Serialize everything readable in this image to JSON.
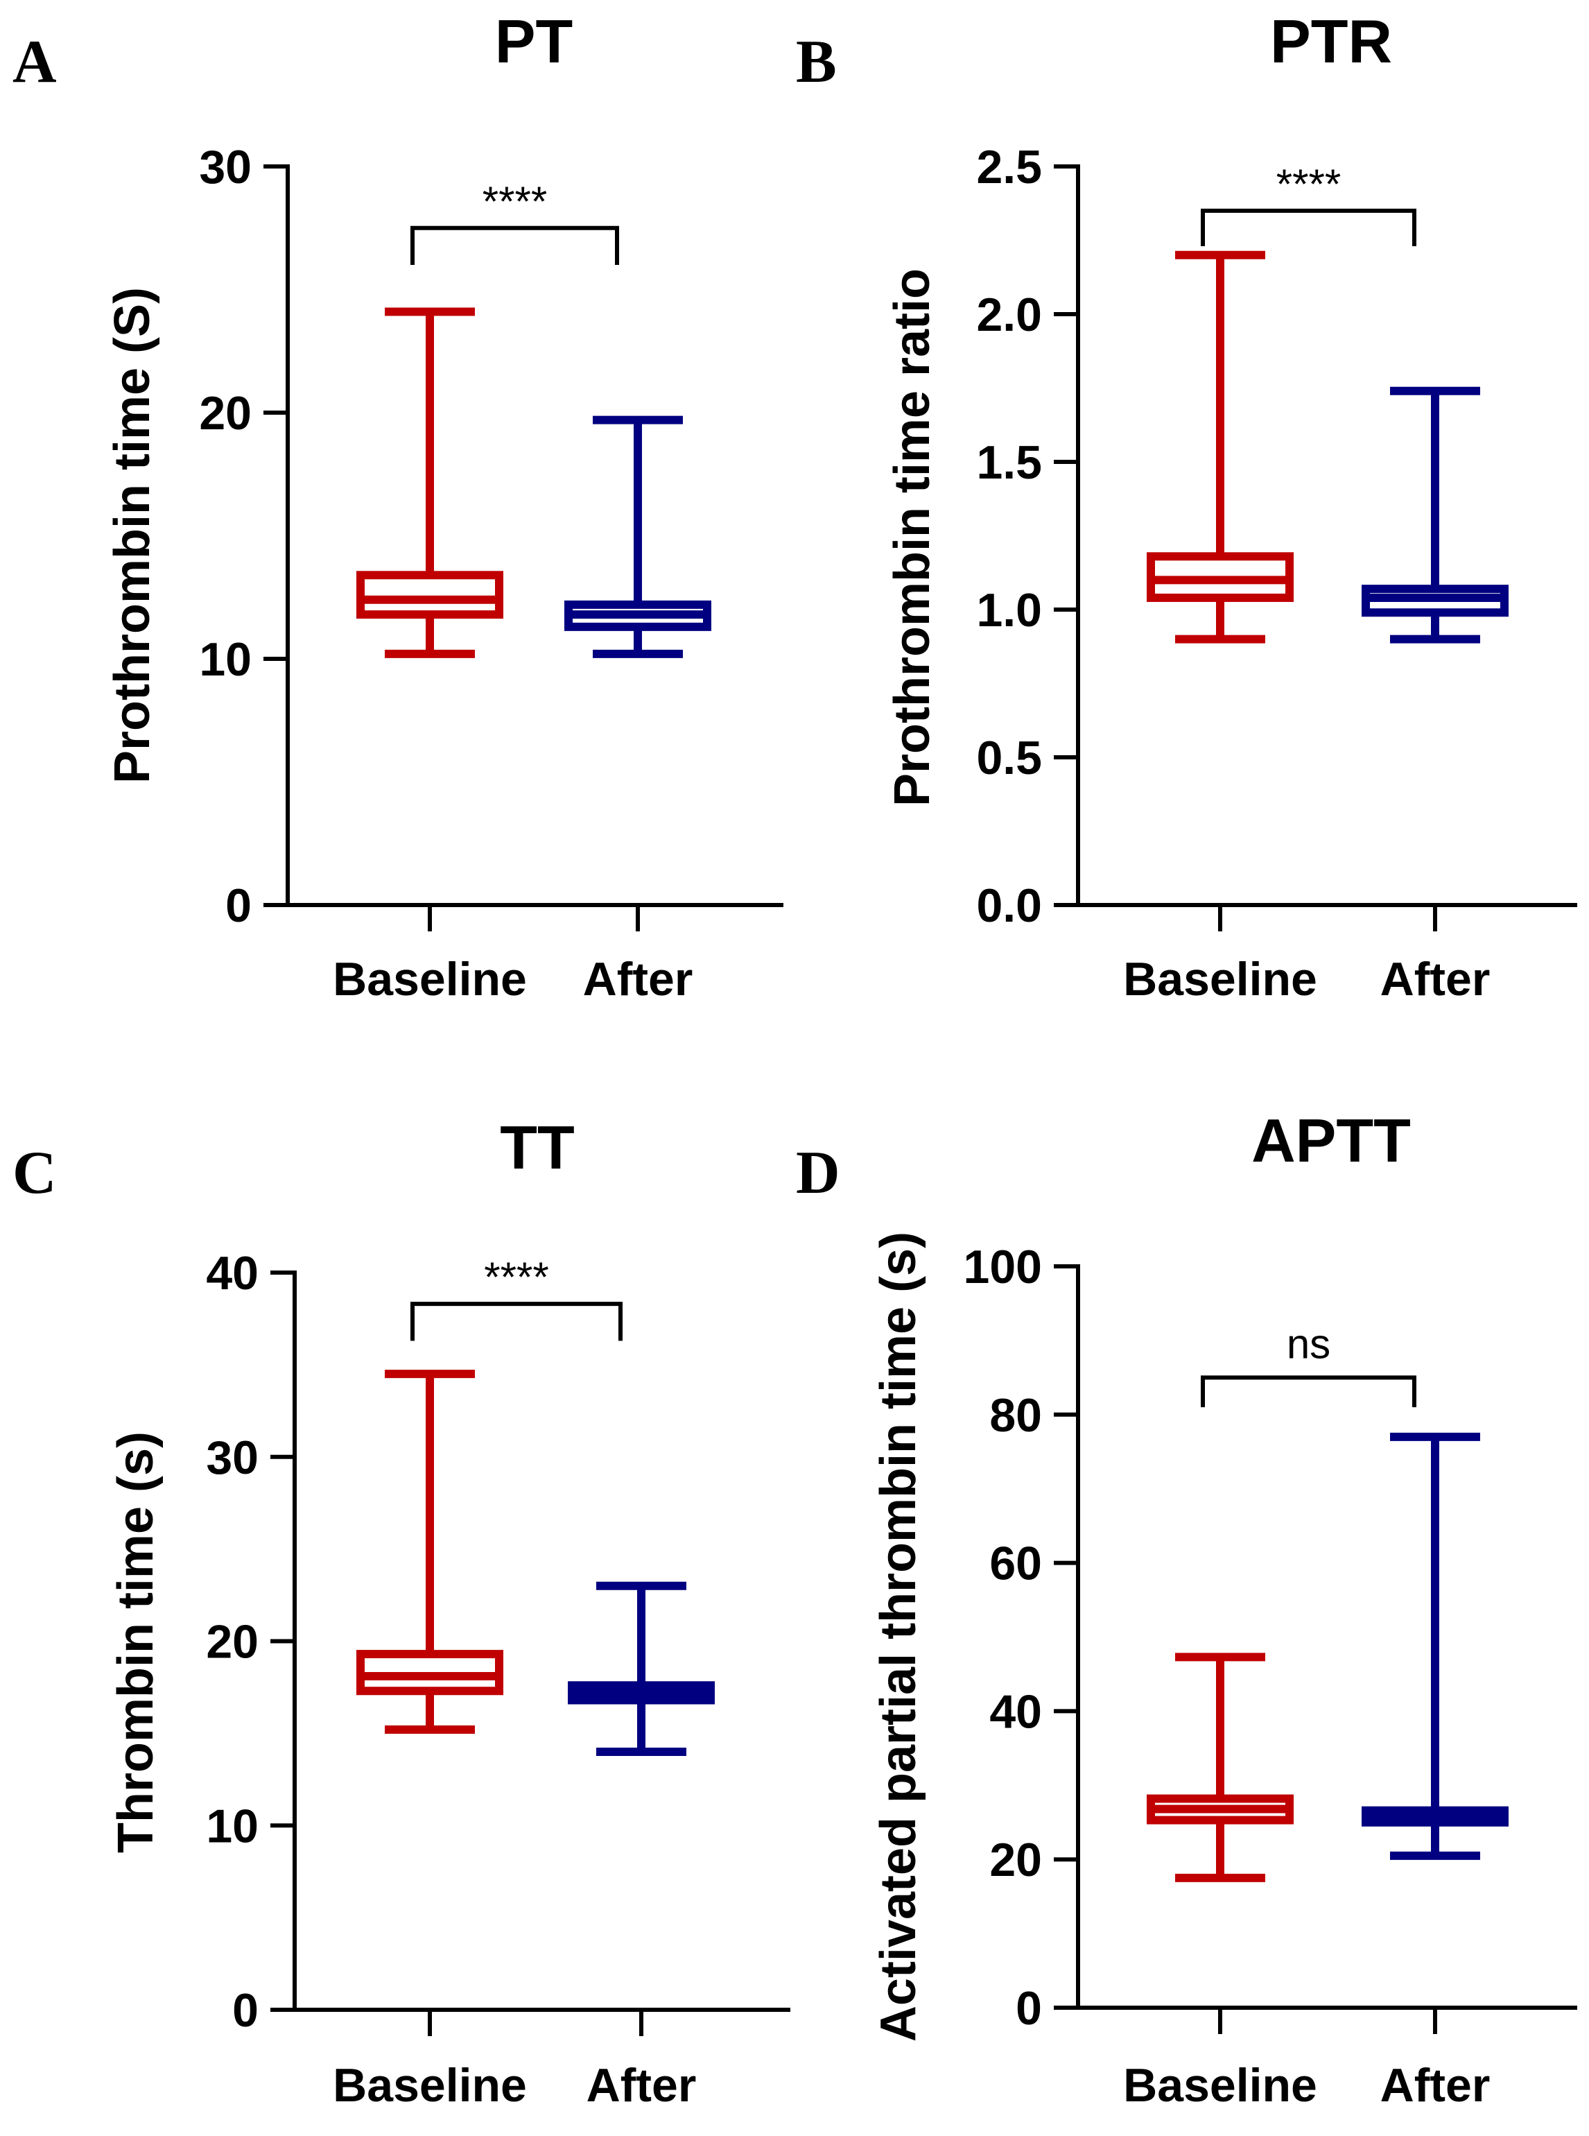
{
  "figure": {
    "group_colors": {
      "Baseline": "#c00000",
      "After": "#000080"
    }
  },
  "chart_data": [
    {
      "panel_letter": "A",
      "type": "box",
      "title": "PT",
      "ylabel": "Prothrombin time (S)",
      "xlabel": "",
      "ylim": [
        0,
        30
      ],
      "yticks": [
        0,
        10,
        20,
        30
      ],
      "ytick_labels": [
        "0",
        "10",
        "20",
        "30"
      ],
      "categories": [
        "Baseline",
        "After"
      ],
      "series": [
        {
          "name": "Baseline",
          "min": 10.2,
          "q1": 11.8,
          "median": 12.4,
          "q3": 13.4,
          "max": 24.1
        },
        {
          "name": "After",
          "min": 10.2,
          "q1": 11.3,
          "median": 11.8,
          "q3": 12.2,
          "max": 19.7
        }
      ],
      "significance": {
        "label": "****",
        "level": 27.5,
        "drop": 1.5
      }
    },
    {
      "panel_letter": "B",
      "type": "box",
      "title": "PTR",
      "ylabel": "Prothrombin time ratio",
      "xlabel": "",
      "ylim": [
        0,
        2.5
      ],
      "yticks": [
        0,
        0.5,
        1,
        1.5,
        2,
        2.5
      ],
      "ytick_labels": [
        "0.0",
        "0.5",
        "1.0",
        "1.5",
        "2.0",
        "2.5"
      ],
      "categories": [
        "Baseline",
        "After"
      ],
      "series": [
        {
          "name": "Baseline",
          "min": 0.9,
          "q1": 1.04,
          "median": 1.1,
          "q3": 1.18,
          "max": 2.2
        },
        {
          "name": "After",
          "min": 0.9,
          "q1": 0.99,
          "median": 1.04,
          "q3": 1.07,
          "max": 1.74
        }
      ],
      "significance": {
        "label": "****",
        "level": 2.35,
        "drop": 0.12
      }
    },
    {
      "panel_letter": "C",
      "type": "box",
      "title": "TT",
      "ylabel": "Thrombin time (s)",
      "xlabel": "",
      "ylim": [
        0,
        40
      ],
      "yticks": [
        0,
        10,
        20,
        30,
        40
      ],
      "ytick_labels": [
        "0",
        "10",
        "20",
        "30",
        "40"
      ],
      "categories": [
        "Baseline",
        "After"
      ],
      "series": [
        {
          "name": "Baseline",
          "min": 15.2,
          "q1": 17.3,
          "median": 18.1,
          "q3": 19.3,
          "max": 34.5
        },
        {
          "name": "After",
          "min": 14.0,
          "q1": 16.8,
          "median": 17.2,
          "q3": 17.6,
          "max": 23.0
        }
      ],
      "significance": {
        "label": "****",
        "level": 38.3,
        "drop": 2.0
      }
    },
    {
      "panel_letter": "D",
      "type": "box",
      "title": "APTT",
      "ylabel": "Activated partial thrombin time (s)",
      "xlabel": "",
      "ylim": [
        0,
        100
      ],
      "yticks": [
        0,
        20,
        40,
        60,
        80,
        100
      ],
      "ytick_labels": [
        "0",
        "20",
        "40",
        "60",
        "80",
        "100"
      ],
      "categories": [
        "Baseline",
        "After"
      ],
      "series": [
        {
          "name": "Baseline",
          "min": 17.5,
          "q1": 25.3,
          "median": 26.8,
          "q3": 28.2,
          "max": 47.3
        },
        {
          "name": "After",
          "min": 20.5,
          "q1": 25.0,
          "median": 25.8,
          "q3": 26.6,
          "max": 77.0
        }
      ],
      "significance": {
        "label": "ns",
        "level": 85,
        "drop": 4
      }
    }
  ]
}
